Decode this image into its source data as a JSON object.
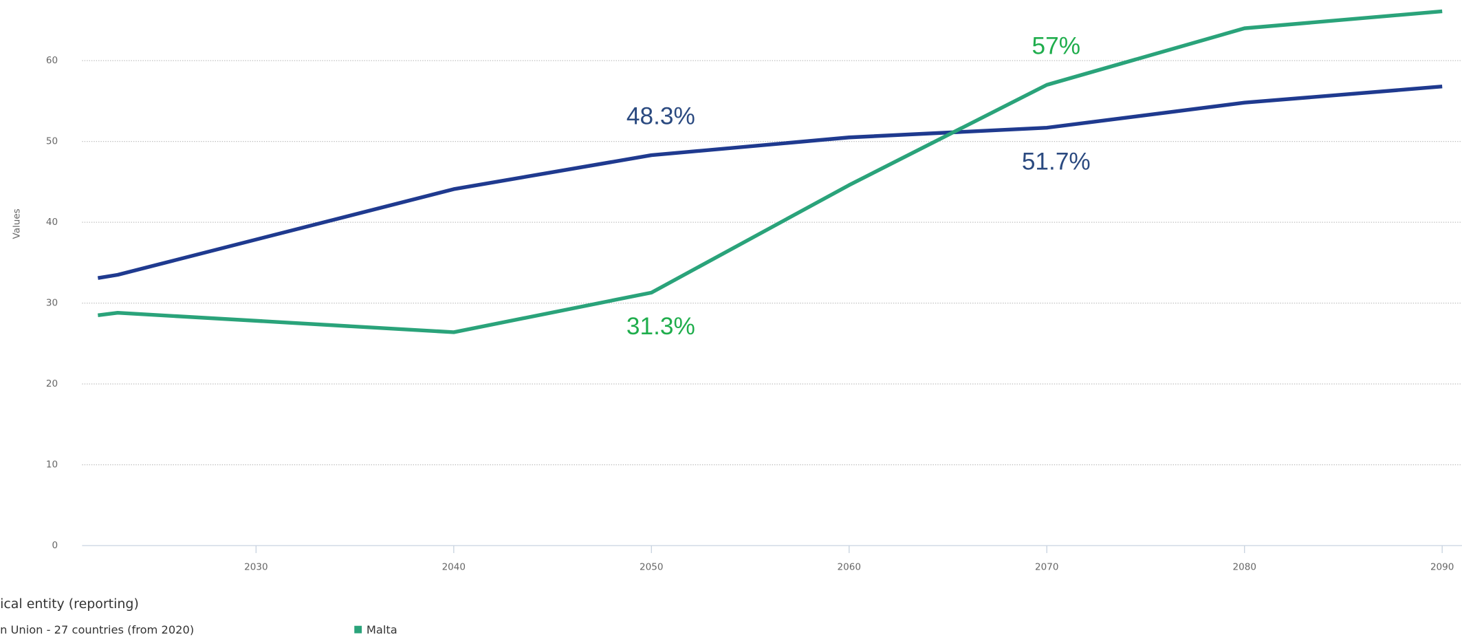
{
  "chart_data": {
    "type": "line",
    "y_axis_label": "Values",
    "legend_title": "ical entity (reporting)",
    "x": [
      2022,
      2023,
      2040,
      2050,
      2060,
      2070,
      2080,
      2090
    ],
    "xlim": [
      2021.2,
      2091
    ],
    "xticks": [
      2030,
      2040,
      2050,
      2060,
      2070,
      2080,
      2090
    ],
    "ylim": [
      0,
      67.5
    ],
    "yticks": [
      0,
      10,
      20,
      30,
      40,
      50,
      60
    ],
    "grid": true,
    "series": [
      {
        "name": "n Union - 27 countries (from 2020)",
        "color": "#1f3a8f",
        "label_color": "#2b4a80",
        "values": [
          33.1,
          33.5,
          44.1,
          48.3,
          50.5,
          51.7,
          54.8,
          56.8
        ],
        "value_labels": [
          null,
          null,
          null,
          "48.3%",
          null,
          "51.7%",
          null,
          null
        ]
      },
      {
        "name": "Malta",
        "color": "#2aa37a",
        "label_color": "#1fad4c",
        "values": [
          28.5,
          28.8,
          26.4,
          31.3,
          44.6,
          57,
          64.0,
          66.1
        ],
        "value_labels": [
          null,
          null,
          null,
          "31.3%",
          null,
          "57%",
          null,
          null
        ]
      }
    ]
  }
}
